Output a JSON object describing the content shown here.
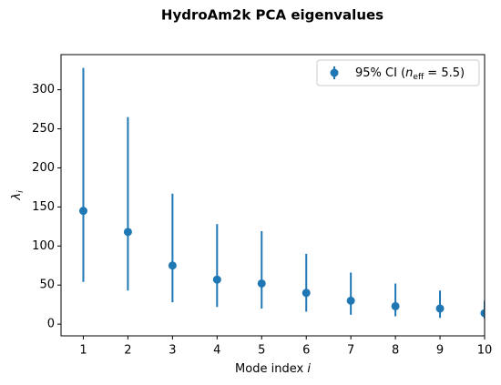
{
  "chart_data": {
    "type": "errorbar",
    "title": "HydroAm2k PCA eigenvalues",
    "x_label": [
      "Mode index ",
      "i"
    ],
    "y_label": [
      "λ",
      "i"
    ],
    "x": [
      1,
      2,
      3,
      4,
      5,
      6,
      7,
      8,
      9,
      10
    ],
    "series": [
      {
        "name": [
          "95% CI (",
          "n",
          "eff",
          " = 5.5)"
        ],
        "color": "#1f77b4",
        "values": [
          145,
          118,
          75,
          57,
          52,
          40,
          30,
          23,
          20,
          14
        ],
        "ci_low": [
          54,
          43,
          28,
          22,
          20,
          16,
          12,
          10,
          8,
          7
        ],
        "ci_high": [
          328,
          265,
          167,
          128,
          119,
          90,
          66,
          52,
          43,
          30
        ]
      }
    ],
    "xlim": [
      0.5,
      10
    ],
    "ylim": [
      -15,
      345
    ],
    "xticks": [
      1,
      2,
      3,
      4,
      5,
      6,
      7,
      8,
      9,
      10
    ],
    "yticks": [
      0,
      50,
      100,
      150,
      200,
      250,
      300
    ],
    "legend": "upper right"
  }
}
